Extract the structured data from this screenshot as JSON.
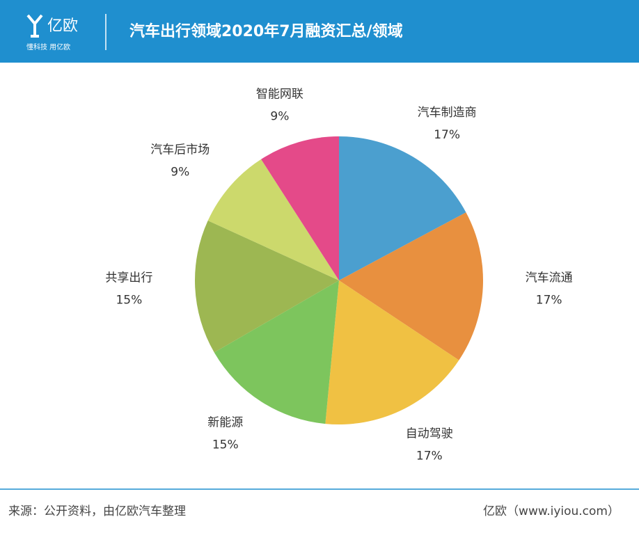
{
  "header": {
    "logo": "亿欧",
    "slogan": "懂科技 用亿欧",
    "title": "汽车出行领域2020年7月融资汇总/领域"
  },
  "chart_data": {
    "type": "pie",
    "categories": [
      "汽车制造商",
      "汽车流通",
      "自动驾驶",
      "新能源",
      "共享出行",
      "汽车后市场",
      "智能网联"
    ],
    "values": [
      17,
      17,
      17,
      15,
      15,
      9,
      9
    ],
    "value_labels": [
      "17%",
      "17%",
      "17%",
      "15%",
      "15%",
      "9%",
      "9%"
    ],
    "colors": [
      "#4b9fcf",
      "#e8903f",
      "#f0c143",
      "#7dc55d",
      "#9db752",
      "#ccd96c",
      "#e44a89"
    ]
  },
  "footer": {
    "source": "来源：公开资料，由亿欧汽车整理",
    "site": "亿欧（www.iyiou.com）"
  }
}
